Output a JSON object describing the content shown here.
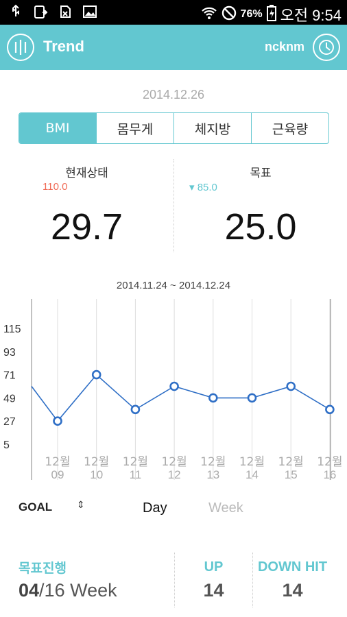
{
  "status_bar": {
    "battery_percent": "76%",
    "time_label": "오전 9:54",
    "icons": [
      "usb-icon",
      "cast-icon",
      "sim-icon",
      "image-icon",
      "wifi-icon",
      "block-icon",
      "battery-icon"
    ]
  },
  "app_bar": {
    "title": "Trend",
    "user": "ncknm",
    "menu_icon": "menu-bars-icon",
    "clock_icon": "clock-icon"
  },
  "date": "2014.12.26",
  "tabs": [
    {
      "label": "BMI",
      "active": true
    },
    {
      "label": "몸무게",
      "active": false
    },
    {
      "label": "체지방",
      "active": false
    },
    {
      "label": "근육량",
      "active": false
    }
  ],
  "current": {
    "label": "현재상태",
    "sub": "110.0",
    "value": "29.7"
  },
  "target": {
    "label": "목표",
    "sub": "▾ 85.0",
    "value": "25.0"
  },
  "range_label": "2014.11.24 ~ 2014.12.24",
  "chart_data": {
    "type": "line",
    "yticks": [
      "115",
      "93",
      "71",
      "49",
      "27",
      "5"
    ],
    "ylim": [
      -15,
      140
    ],
    "categories": [
      "12월 09",
      "12월 10",
      "12월 11",
      "12월 12",
      "12월 13",
      "12월 14",
      "12월 15",
      "12월 16"
    ],
    "series": [
      {
        "values": [
          27,
          71,
          38,
          60,
          49,
          49,
          60,
          38
        ]
      }
    ],
    "left_value": 60,
    "grid": true,
    "accent": "#2f6fc6"
  },
  "controls": {
    "goal_label": "GOAL",
    "spinner": "⇕",
    "day_label": "Day",
    "week_label": "Week"
  },
  "progress": {
    "label": "목표진행",
    "current": "04",
    "total": "/16 Week",
    "up_label": "UP",
    "up_value": "14",
    "down_label": "DOWN HIT",
    "down_value": "14"
  },
  "colors": {
    "accent": "#62c7d0",
    "red": "#f06a55"
  }
}
